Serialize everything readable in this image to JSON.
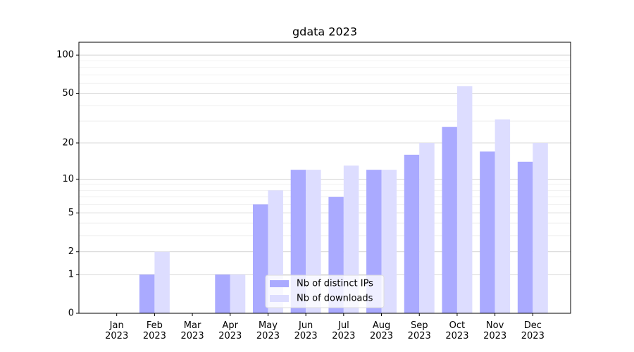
{
  "chart_data": {
    "type": "bar",
    "title": "gdata 2023",
    "categories": [
      "Jan\n2023",
      "Feb\n2023",
      "Mar\n2023",
      "Apr\n2023",
      "May\n2023",
      "Jun\n2023",
      "Jul\n2023",
      "Aug\n2023",
      "Sep\n2023",
      "Oct\n2023",
      "Nov\n2023",
      "Dec\n2023"
    ],
    "series": [
      {
        "name": "Nb of distinct IPs",
        "color": "#aaaaff",
        "values": [
          0,
          1,
          0,
          1,
          6,
          12,
          7,
          12,
          16,
          27,
          17,
          14
        ]
      },
      {
        "name": "Nb of downloads",
        "color": "#ddddff",
        "values": [
          0,
          2,
          0,
          1,
          8,
          12,
          13,
          12,
          20,
          57,
          31,
          20
        ]
      }
    ],
    "yscale": "log1p",
    "ylim": [
      0,
      126
    ],
    "yticks": [
      0,
      1,
      2,
      5,
      10,
      20,
      50,
      100
    ],
    "yminorticks": [
      3,
      4,
      6,
      7,
      8,
      9,
      30,
      40,
      60,
      70,
      80,
      90
    ],
    "grid": true,
    "legend": "lower center"
  }
}
